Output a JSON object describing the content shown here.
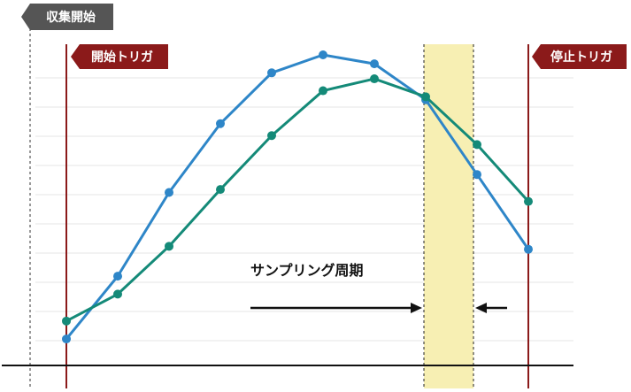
{
  "labels": {
    "collect_start": "収集開始",
    "start_trigger": "開始トリガ",
    "stop_trigger": "停止トリガ",
    "sampling_period": "サンプリング周期"
  },
  "colors": {
    "blue": "#2e86c8",
    "green": "#148a78",
    "trigger_red": "#8b1a1a",
    "collect_gray": "#555555",
    "band_fill": "#f7efb3",
    "grid": "#e6e6e6"
  },
  "chart_data": {
    "type": "line",
    "title": "",
    "xlabel": "",
    "ylabel": "",
    "series": [
      {
        "values": [
          0.05,
          0.26,
          0.54,
          0.77,
          0.94,
          1.0,
          0.97,
          0.85,
          0.6,
          0.35
        ]
      },
      {
        "values": [
          0.11,
          0.2,
          0.36,
          0.55,
          0.73,
          0.88,
          0.92,
          0.86,
          0.7,
          0.51
        ]
      }
    ],
    "grid": true
  }
}
